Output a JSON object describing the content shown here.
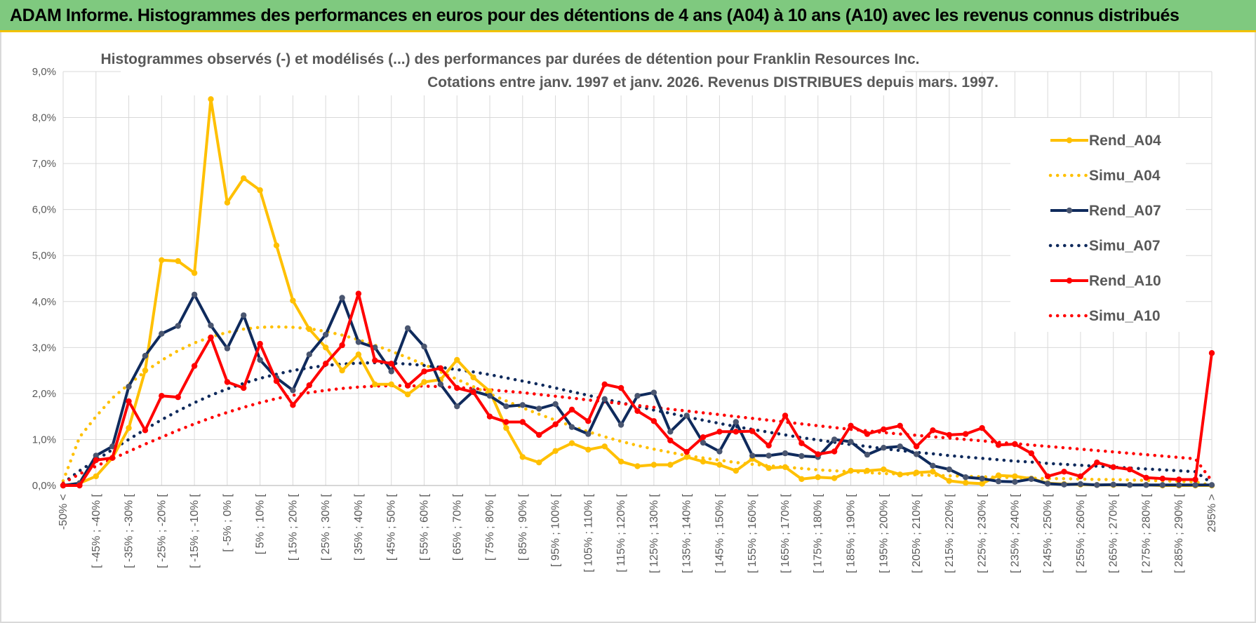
{
  "header": {
    "title": "ADAM Informe. Histogrammes des performances en euros pour des détentions de 4 ans (A04) à 10 ans (A10) avec les revenus connus distribués"
  },
  "chart_data": {
    "type": "line",
    "title_line1": "Histogrammes observés (-) et modélisés (...) des performances par durées de détention pour Franklin Resources Inc.",
    "title_line2": "Cotations entre janv. 1997 et janv. 2026. Revenus DISTRIBUES depuis mars. 1997.",
    "ylim": [
      0,
      9
    ],
    "yticks": [
      "0,0%",
      "1,0%",
      "2,0%",
      "3,0%",
      "4,0%",
      "5,0%",
      "6,0%",
      "7,0%",
      "8,0%",
      "9,0%"
    ],
    "grid": true,
    "legend_position": "right",
    "categories": [
      "-50% <",
      "[ -50% ; -45% [",
      "[ -45% ; -40% [",
      "[ -40% ; -35% [",
      "[ -35% ; -30% [",
      "[ -30% ; -25% [",
      "[ -25% ; -20% [",
      "[ -20% ; -15% [",
      "[ -15% ; -10% [",
      "[ -10% ; -5% [",
      "[ -5% ; 0% [",
      "[ 0% ; 5% [",
      "[ 5% ; 10% [",
      "[ 10% ; 15% [",
      "[ 15% ; 20% [",
      "[ 20% ; 25% [",
      "[ 25% ; 30% [",
      "[ 30% ; 35% [",
      "[ 35% ; 40% [",
      "[ 40% ; 45% [",
      "[ 45% ; 50% [",
      "[ 50% ; 55% [",
      "[ 55% ; 60% [",
      "[ 60% ; 65% [",
      "[ 65% ; 70% [",
      "[ 70% ; 75% [",
      "[ 75% ; 80% [",
      "[ 80% ; 85% [",
      "[ 85% ; 90% [",
      "[ 90% ; 95% [",
      "[ 95% ; 100% [",
      "[ 100% ; 105% [",
      "[ 105% ; 110% [",
      "[ 110% ; 115% [",
      "[ 115% ; 120% [",
      "[ 120% ; 125% [",
      "[ 125% ; 130% [",
      "[ 130% ; 135% [",
      "[ 135% ; 140% [",
      "[ 140% ; 145% [",
      "[ 145% ; 150% [",
      "[ 150% ; 155% [",
      "[ 155% ; 160% [",
      "[ 160% ; 165% [",
      "[ 165% ; 170% [",
      "[ 170% ; 175% [",
      "[ 175% ; 180% [",
      "[ 180% ; 185% [",
      "[ 185% ; 190% [",
      "[ 190% ; 195% [",
      "[ 195% ; 200% [",
      "[ 200% ; 205% [",
      "[ 205% ; 210% [",
      "[ 210% ; 215% [",
      "[ 215% ; 220% [",
      "[ 220% ; 225% [",
      "[ 225% ; 230% [",
      "[ 230% ; 235% [",
      "[ 235% ; 240% [",
      "[ 240% ; 245% [",
      "[ 245% ; 250% [",
      "[ 250% ; 255% [",
      "[ 255% ; 260% [",
      "[ 260% ; 265% [",
      "[ 265% ; 270% [",
      "[ 270% ; 275% [",
      "[ 275% ; 280% [",
      "[ 280% ; 285% [",
      "[ 285% ; 290% [",
      "[ 290% ; 295% [",
      "295% >"
    ],
    "label_every": 2,
    "series": [
      {
        "name": "Rend_A04",
        "color": "#ffc000",
        "style": "solid",
        "values": [
          0,
          0.05,
          0.2,
          0.6,
          1.25,
          2.5,
          4.9,
          4.88,
          4.62,
          8.4,
          6.15,
          6.68,
          6.42,
          5.22,
          4.02,
          3.4,
          3.0,
          2.5,
          2.85,
          2.2,
          2.2,
          1.98,
          2.25,
          2.3,
          2.73,
          2.35,
          2.05,
          1.25,
          0.62,
          0.5,
          0.75,
          0.92,
          0.78,
          0.85,
          0.52,
          0.42,
          0.45,
          0.45,
          0.62,
          0.52,
          0.45,
          0.32,
          0.58,
          0.38,
          0.4,
          0.14,
          0.18,
          0.16,
          0.32,
          0.32,
          0.35,
          0.24,
          0.28,
          0.3,
          0.1,
          0.06,
          0.04,
          0.22,
          0.2,
          0.15,
          0.05,
          0.03,
          0.02,
          0.01,
          0.01,
          0.01,
          0.01,
          0,
          0,
          0,
          0
        ]
      },
      {
        "name": "Simu_A04",
        "color": "#ffc000",
        "style": "dotted",
        "values": [
          0.1,
          1.05,
          1.5,
          1.9,
          2.2,
          2.48,
          2.72,
          2.93,
          3.1,
          3.23,
          3.33,
          3.4,
          3.44,
          3.45,
          3.44,
          3.41,
          3.35,
          3.27,
          3.17,
          3.05,
          2.92,
          2.78,
          2.63,
          2.47,
          2.31,
          2.15,
          1.99,
          1.84,
          1.69,
          1.55,
          1.42,
          1.29,
          1.17,
          1.06,
          0.96,
          0.87,
          0.79,
          0.72,
          0.65,
          0.6,
          0.55,
          0.5,
          0.46,
          0.43,
          0.4,
          0.37,
          0.34,
          0.32,
          0.3,
          0.28,
          0.26,
          0.25,
          0.23,
          0.22,
          0.21,
          0.2,
          0.19,
          0.18,
          0.17,
          0.16,
          0.15,
          0.15,
          0.14,
          0.13,
          0.13,
          0.12,
          0.11,
          0.1,
          0.09,
          0.08,
          0
        ]
      },
      {
        "name": "Rend_A07",
        "color": "#0f2a5c",
        "style": "solid",
        "values": [
          0,
          0.05,
          0.65,
          0.85,
          2.15,
          2.82,
          3.3,
          3.47,
          4.15,
          3.48,
          2.98,
          3.7,
          2.73,
          2.34,
          2.07,
          2.85,
          3.28,
          4.08,
          3.12,
          3.0,
          2.48,
          3.42,
          3.02,
          2.2,
          1.72,
          2.05,
          1.95,
          1.72,
          1.75,
          1.67,
          1.77,
          1.27,
          1.12,
          1.88,
          1.32,
          1.95,
          2.02,
          1.17,
          1.52,
          0.93,
          0.74,
          1.38,
          0.65,
          0.65,
          0.7,
          0.64,
          0.62,
          1.0,
          0.95,
          0.67,
          0.82,
          0.85,
          0.68,
          0.43,
          0.35,
          0.18,
          0.15,
          0.09,
          0.08,
          0.14,
          0.04,
          0.02,
          0.03,
          0.01,
          0.02,
          0.01,
          0.01,
          0.01,
          0.01,
          0.01,
          0.01
        ]
      },
      {
        "name": "Simu_A07",
        "color": "#0f2a5c",
        "style": "dotted",
        "values": [
          0.05,
          0.32,
          0.55,
          0.78,
          1.0,
          1.22,
          1.43,
          1.62,
          1.8,
          1.96,
          2.1,
          2.22,
          2.33,
          2.42,
          2.5,
          2.56,
          2.61,
          2.64,
          2.66,
          2.67,
          2.66,
          2.64,
          2.61,
          2.57,
          2.52,
          2.47,
          2.41,
          2.34,
          2.27,
          2.2,
          2.12,
          2.04,
          1.96,
          1.88,
          1.8,
          1.72,
          1.64,
          1.57,
          1.49,
          1.42,
          1.35,
          1.28,
          1.22,
          1.16,
          1.1,
          1.04,
          0.99,
          0.94,
          0.89,
          0.85,
          0.8,
          0.76,
          0.72,
          0.69,
          0.65,
          0.62,
          0.59,
          0.56,
          0.53,
          0.51,
          0.48,
          0.46,
          0.44,
          0.42,
          0.4,
          0.38,
          0.36,
          0.34,
          0.32,
          0.3,
          0.05
        ]
      },
      {
        "name": "Rend_A10",
        "color": "#ff0000",
        "style": "solid",
        "values": [
          0,
          0,
          0.55,
          0.6,
          1.83,
          1.2,
          1.95,
          1.92,
          2.6,
          3.22,
          2.25,
          2.12,
          3.08,
          2.27,
          1.75,
          2.18,
          2.65,
          3.05,
          4.17,
          2.72,
          2.65,
          2.17,
          2.48,
          2.55,
          2.12,
          2.03,
          1.5,
          1.38,
          1.38,
          1.1,
          1.33,
          1.65,
          1.4,
          2.2,
          2.12,
          1.62,
          1.4,
          0.98,
          0.73,
          1.05,
          1.17,
          1.17,
          1.18,
          0.87,
          1.52,
          0.92,
          0.68,
          0.74,
          1.3,
          1.12,
          1.22,
          1.3,
          0.85,
          1.2,
          1.1,
          1.12,
          1.25,
          0.88,
          0.9,
          0.7,
          0.2,
          0.3,
          0.2,
          0.5,
          0.4,
          0.35,
          0.17,
          0.15,
          0.13,
          0.13,
          2.88
        ]
      },
      {
        "name": "Simu_A10",
        "color": "#ff0000",
        "style": "dotted",
        "values": [
          0.05,
          0.25,
          0.42,
          0.58,
          0.74,
          0.9,
          1.05,
          1.2,
          1.34,
          1.47,
          1.59,
          1.7,
          1.8,
          1.89,
          1.96,
          2.02,
          2.07,
          2.11,
          2.14,
          2.16,
          2.17,
          2.17,
          2.16,
          2.15,
          2.13,
          2.11,
          2.08,
          2.05,
          2.02,
          1.98,
          1.94,
          1.9,
          1.86,
          1.82,
          1.78,
          1.74,
          1.7,
          1.66,
          1.62,
          1.58,
          1.54,
          1.5,
          1.46,
          1.42,
          1.38,
          1.34,
          1.3,
          1.26,
          1.22,
          1.19,
          1.15,
          1.12,
          1.09,
          1.06,
          1.03,
          1.0,
          0.97,
          0.94,
          0.91,
          0.88,
          0.85,
          0.82,
          0.79,
          0.76,
          0.73,
          0.7,
          0.67,
          0.64,
          0.61,
          0.58,
          0.1
        ]
      }
    ]
  }
}
